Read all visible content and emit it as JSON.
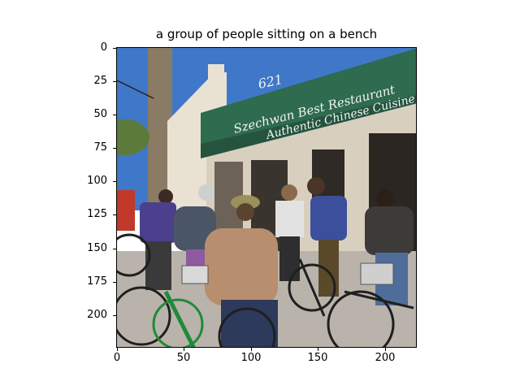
{
  "figure": {
    "title": "a group of people sitting on a bench",
    "y_ticks": [
      "0",
      "25",
      "50",
      "75",
      "100",
      "125",
      "150",
      "175",
      "200"
    ],
    "x_ticks": [
      "0",
      "50",
      "100",
      "150",
      "200"
    ]
  },
  "photo": {
    "sign_lines": [
      "621",
      "Szechwan Best Restaurant",
      "Authentic Chinese Cuisine"
    ],
    "colors": {
      "sky": "#3f78c8",
      "awning": "#2e6b4f",
      "wall": "#e9e2d3",
      "shadow": "#6c6257",
      "pavement": "#b9b3ab"
    }
  }
}
